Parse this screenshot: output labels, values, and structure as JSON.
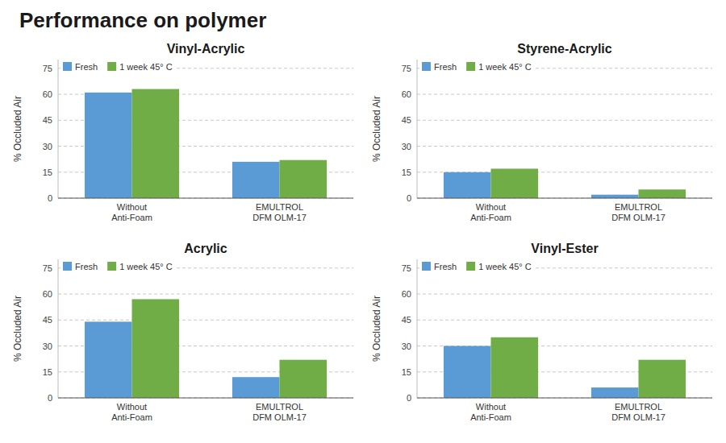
{
  "title": "Performance on polymer",
  "chart_data": [
    {
      "type": "bar",
      "title": "Vinyl-Acrylic",
      "categories": [
        "Without\nAnti-Foam",
        "EMULTROL\nDFM OLM-17"
      ],
      "series": [
        {
          "name": "Fresh",
          "color": "#5B9BD5",
          "values": [
            61,
            21
          ]
        },
        {
          "name": "1 week 45° C",
          "color": "#70AD47",
          "values": [
            63,
            22
          ]
        }
      ],
      "ylabel": "% Occluded Air",
      "ylim": [
        0,
        80
      ],
      "yticks": [
        0,
        15,
        30,
        45,
        60,
        75
      ],
      "grid": true,
      "legend": "upper left"
    },
    {
      "type": "bar",
      "title": "Styrene-Acrylic",
      "categories": [
        "Without\nAnti-Foam",
        "EMULTROL\nDFM OLM-17"
      ],
      "series": [
        {
          "name": "Fresh",
          "color": "#5B9BD5",
          "values": [
            15,
            2
          ]
        },
        {
          "name": "1 week 45° C",
          "color": "#70AD47",
          "values": [
            17,
            5
          ]
        }
      ],
      "ylabel": "% Occluded Air",
      "ylim": [
        0,
        80
      ],
      "yticks": [
        0,
        15,
        30,
        45,
        60,
        75
      ],
      "grid": true,
      "legend": "upper left"
    },
    {
      "type": "bar",
      "title": "Acrylic",
      "categories": [
        "Without\nAnti-Foam",
        "EMULTROL\nDFM OLM-17"
      ],
      "series": [
        {
          "name": "Fresh",
          "color": "#5B9BD5",
          "values": [
            44,
            12
          ]
        },
        {
          "name": "1 week 45° C",
          "color": "#70AD47",
          "values": [
            57,
            22
          ]
        }
      ],
      "ylabel": "% Occluded Air",
      "ylim": [
        0,
        80
      ],
      "yticks": [
        0,
        15,
        30,
        45,
        60,
        75
      ],
      "grid": true,
      "legend": "upper left"
    },
    {
      "type": "bar",
      "title": "Vinyl-Ester",
      "categories": [
        "Without\nAnti-Foam",
        "EMULTROL\nDFM OLM-17"
      ],
      "series": [
        {
          "name": "Fresh",
          "color": "#5B9BD5",
          "values": [
            30,
            6
          ]
        },
        {
          "name": "1 week 45° C",
          "color": "#70AD47",
          "values": [
            35,
            22
          ]
        }
      ],
      "ylabel": "% Occluded Air",
      "ylim": [
        0,
        80
      ],
      "yticks": [
        0,
        15,
        30,
        45,
        60,
        75
      ],
      "grid": true,
      "legend": "upper left"
    }
  ]
}
